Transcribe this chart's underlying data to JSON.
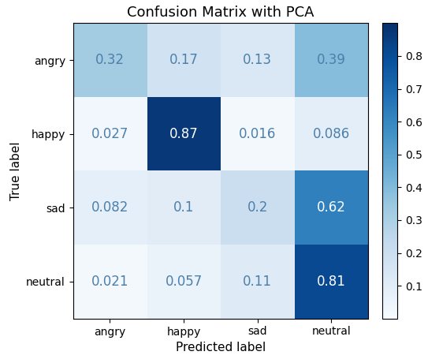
{
  "title": "Confusion Matrix with PCA",
  "xlabel": "Predicted label",
  "ylabel": "True label",
  "classes": [
    "angry",
    "happy",
    "sad",
    "neutral"
  ],
  "matrix": [
    [
      0.32,
      0.17,
      0.13,
      0.39
    ],
    [
      0.027,
      0.87,
      0.016,
      0.086
    ],
    [
      0.082,
      0.1,
      0.2,
      0.62
    ],
    [
      0.021,
      0.057,
      0.11,
      0.81
    ]
  ],
  "cmap": "Blues",
  "vmin": 0.0,
  "vmax": 0.9,
  "colorbar_ticks": [
    0.1,
    0.2,
    0.3,
    0.4,
    0.5,
    0.6,
    0.7,
    0.8
  ],
  "text_color_threshold": 0.5,
  "title_fontsize": 13,
  "label_fontsize": 11,
  "tick_fontsize": 10,
  "cell_text_fontsize": 12,
  "light_text_color": "#4c7faa",
  "dark_text_color": "white"
}
